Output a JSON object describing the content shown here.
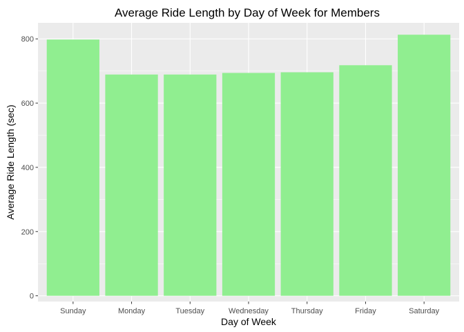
{
  "chart_data": {
    "type": "bar",
    "title": "Average Ride Length by Day of Week for Members",
    "xlabel": "Day of Week",
    "ylabel": "Average Ride Length (sec)",
    "categories": [
      "Sunday",
      "Monday",
      "Tuesday",
      "Wednesday",
      "Thursday",
      "Friday",
      "Saturday"
    ],
    "values": [
      798,
      689,
      689,
      694,
      696,
      718,
      813
    ],
    "ylim": [
      -18,
      850
    ],
    "yticks": [
      0,
      200,
      400,
      600,
      800
    ],
    "grid": true,
    "legend": "none",
    "colors": {
      "bar": "#90ee90",
      "panel": "#ebebeb",
      "grid_major": "#ffffff",
      "tick_text": "#4d4d4d"
    }
  }
}
